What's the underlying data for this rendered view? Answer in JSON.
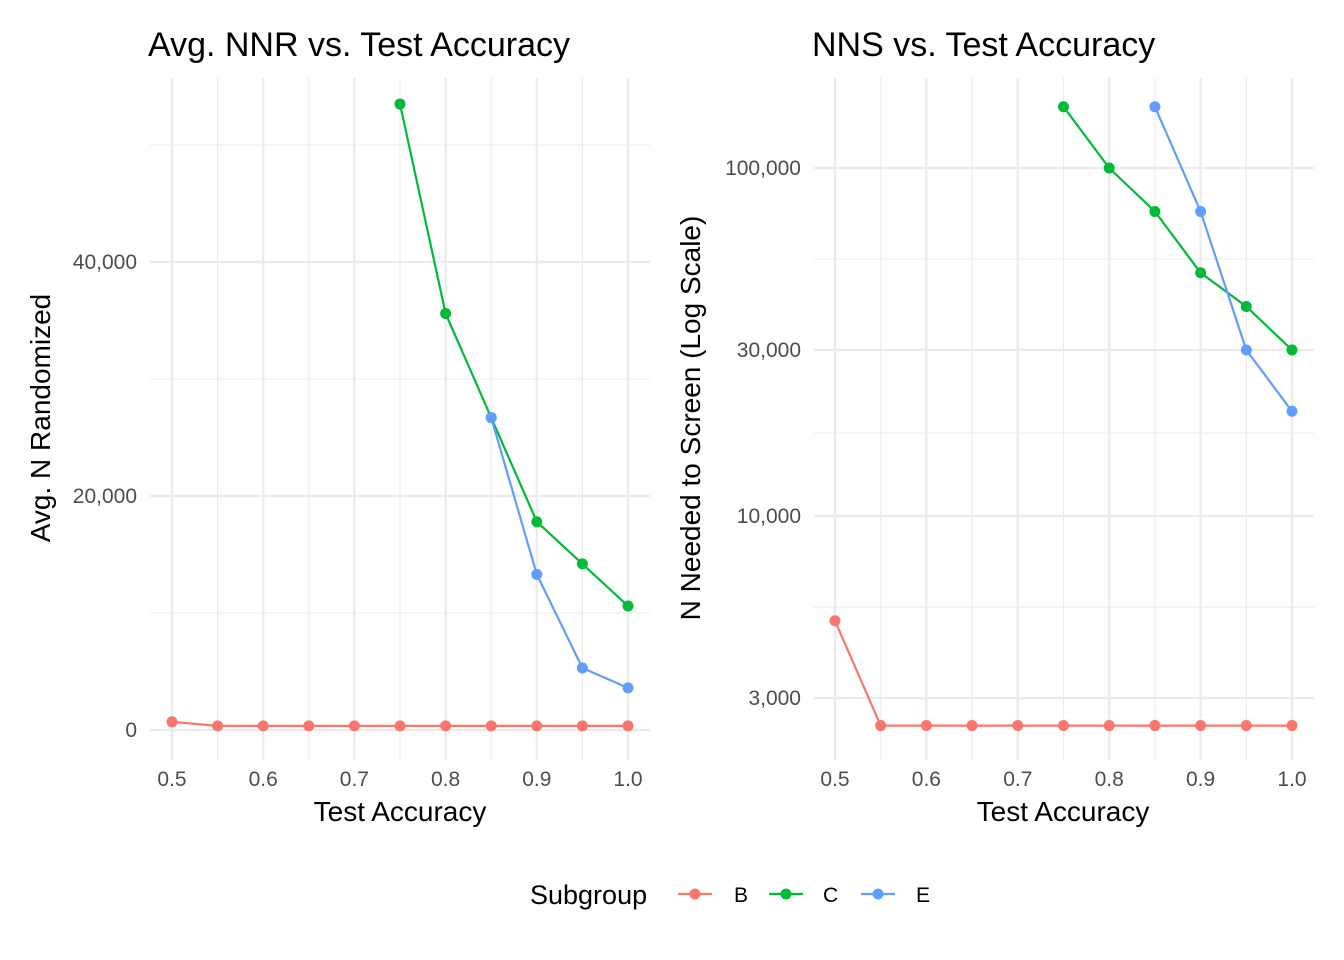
{
  "chart_data": [
    {
      "type": "line",
      "title": "Avg. NNR vs. Test Accuracy",
      "xlabel": "Test Accuracy",
      "ylabel": "Avg. N Randomized",
      "xlim": [
        0.5,
        1.0
      ],
      "ylim": [
        0,
        55000
      ],
      "x_ticks": [
        0.5,
        0.6,
        0.7,
        0.8,
        0.9,
        1.0
      ],
      "x_tick_labels": [
        "0.5",
        "0.6",
        "0.7",
        "0.8",
        "0.9",
        "1.0"
      ],
      "y_ticks": [
        0,
        20000,
        40000
      ],
      "y_tick_labels": [
        "0",
        "20,000",
        "40,000"
      ],
      "grid": true,
      "series": [
        {
          "name": "B",
          "color": "#F8766D",
          "x": [
            0.5,
            0.55,
            0.6,
            0.65,
            0.7,
            0.75,
            0.8,
            0.85,
            0.9,
            0.95,
            1.0
          ],
          "y": [
            700,
            350,
            350,
            350,
            350,
            350,
            350,
            350,
            350,
            350,
            350
          ]
        },
        {
          "name": "C",
          "color": "#00BA38",
          "x": [
            0.75,
            0.8,
            0.85,
            0.9,
            0.95,
            1.0
          ],
          "y": [
            53500,
            35600,
            26700,
            17800,
            14200,
            10600
          ]
        },
        {
          "name": "E",
          "color": "#619CFF",
          "x": [
            0.85,
            0.9,
            0.95,
            1.0
          ],
          "y": [
            26700,
            13300,
            5300,
            3600
          ]
        }
      ]
    },
    {
      "type": "line",
      "title": "NNS vs. Test Accuracy",
      "xlabel": "Test Accuracy",
      "ylabel": "N Needed to Screen (Log Scale)",
      "y_scale": "log",
      "xlim": [
        0.5,
        1.0
      ],
      "ylim": [
        2500,
        160000
      ],
      "x_ticks": [
        0.5,
        0.6,
        0.7,
        0.8,
        0.9,
        1.0
      ],
      "x_tick_labels": [
        "0.5",
        "0.6",
        "0.7",
        "0.8",
        "0.9",
        "1.0"
      ],
      "y_ticks": [
        3000,
        10000,
        30000,
        100000
      ],
      "y_tick_labels": [
        "3,000",
        "10,000",
        "30,000",
        "100,000"
      ],
      "grid": true,
      "series": [
        {
          "name": "B",
          "color": "#F8766D",
          "x": [
            0.5,
            0.55,
            0.6,
            0.65,
            0.7,
            0.75,
            0.8,
            0.85,
            0.9,
            0.95,
            1.0
          ],
          "y": [
            5000,
            2500,
            2500,
            2500,
            2500,
            2500,
            2500,
            2500,
            2500,
            2500,
            2500
          ]
        },
        {
          "name": "C",
          "color": "#00BA38",
          "x": [
            0.75,
            0.8,
            0.85,
            0.9,
            0.95,
            1.0
          ],
          "y": [
            150000,
            100000,
            75000,
            50000,
            40000,
            30000
          ]
        },
        {
          "name": "E",
          "color": "#619CFF",
          "x": [
            0.85,
            0.9,
            0.95,
            1.0
          ],
          "y": [
            150000,
            75000,
            30000,
            20000
          ]
        }
      ]
    }
  ],
  "legend": {
    "title": "Subgroup",
    "placement": "bottom",
    "items": [
      {
        "label": "B",
        "color": "#F8766D"
      },
      {
        "label": "C",
        "color": "#00BA38"
      },
      {
        "label": "E",
        "color": "#619CFF"
      }
    ]
  }
}
